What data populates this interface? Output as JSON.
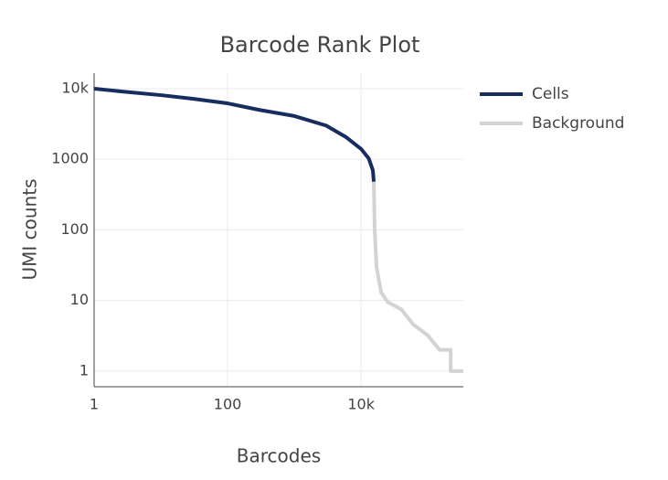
{
  "chart_data": {
    "type": "line",
    "title": "Barcode Rank Plot",
    "x_label": "Barcodes",
    "y_label": "UMI counts",
    "x_scale": "log",
    "y_scale": "log",
    "grid": true,
    "legend_position": "right",
    "xlim": [
      1,
      340000
    ],
    "ylim": [
      0.6,
      16600
    ],
    "xticks": [
      1,
      100,
      {
        "value": 10000,
        "label": "10k"
      }
    ],
    "yticks": [
      1,
      10,
      100,
      1000,
      {
        "value": 10000,
        "label": "10k"
      }
    ],
    "series": [
      {
        "name": "Cells",
        "color": "#172d5f",
        "x": [
          1,
          3,
          10,
          30,
          100,
          300,
          1000,
          3000,
          6000,
          10000,
          13000,
          15000,
          15500
        ],
        "values": [
          10000,
          9000,
          8100,
          7200,
          6200,
          5000,
          4100,
          3000,
          2050,
          1400,
          1030,
          700,
          480
        ]
      },
      {
        "name": "Background",
        "color": "#d3d3d3",
        "x": [
          15500,
          16000,
          17000,
          20000,
          25000,
          40000,
          60000,
          100000,
          150000,
          220000,
          220000,
          340000
        ],
        "values": [
          480,
          100,
          30,
          13,
          9.5,
          7.5,
          4.6,
          3.2,
          2,
          2,
          1,
          1
        ]
      }
    ]
  }
}
